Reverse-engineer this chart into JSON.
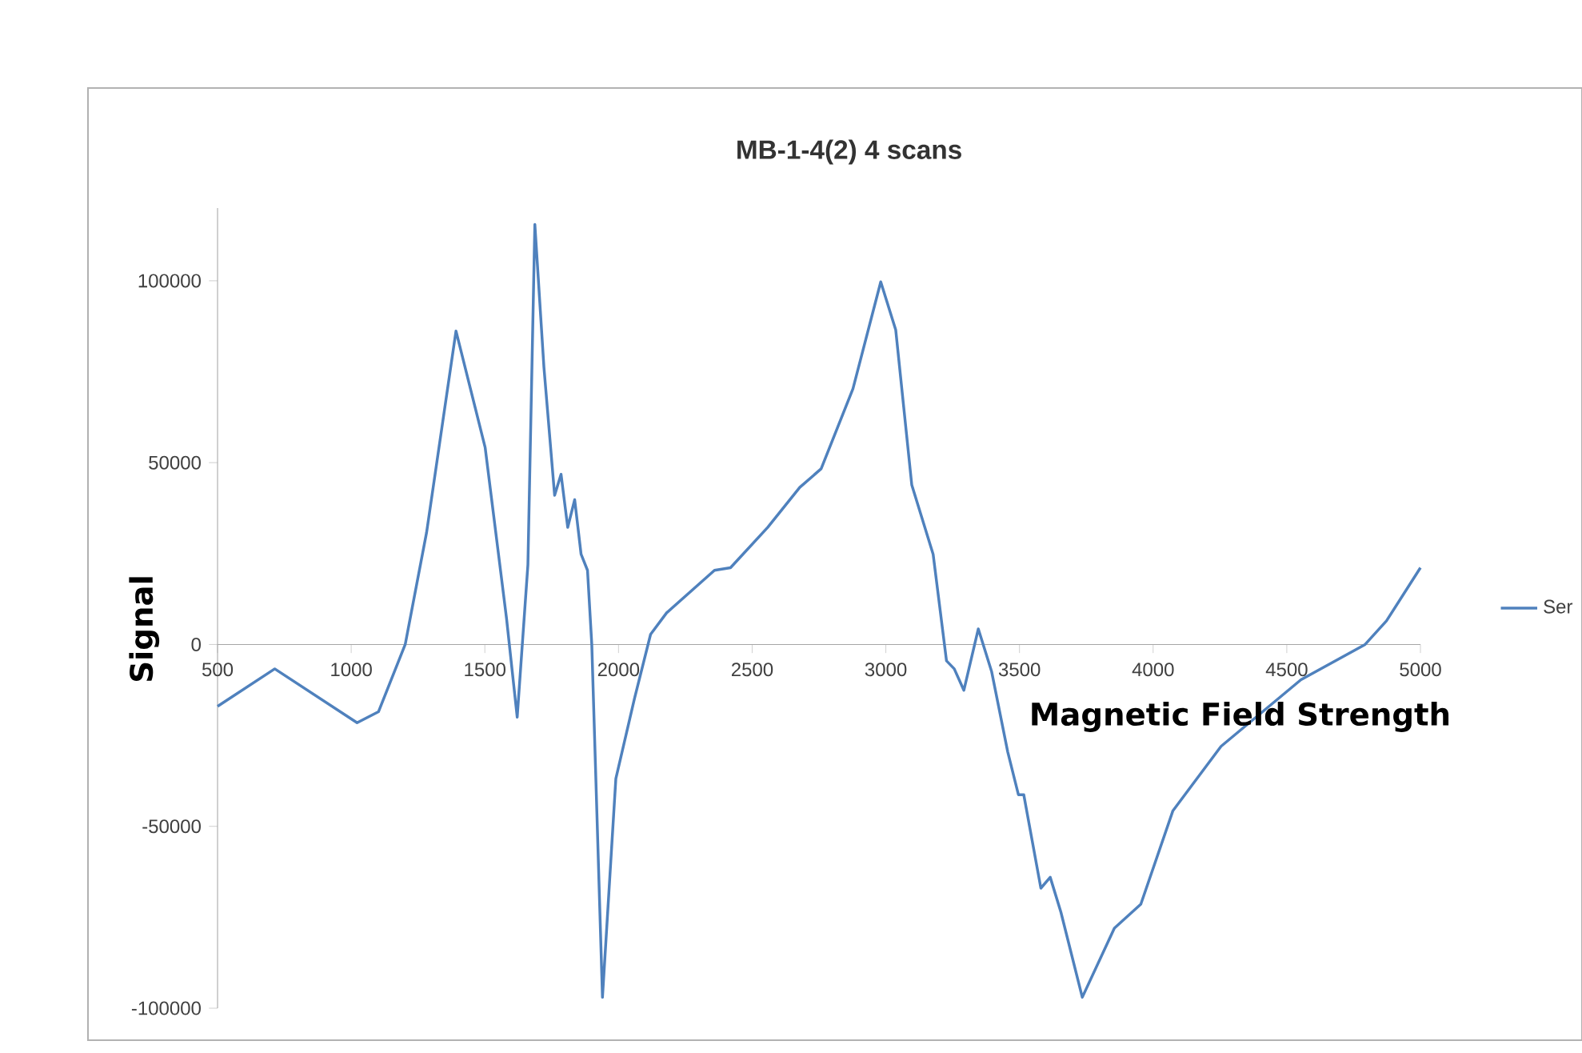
{
  "chart_data": {
    "type": "line",
    "title": "MB-1-4(2) 4 scans",
    "xlabel": "Magnetic Field Strength",
    "ylabel": "Signal",
    "xlim": [
      500,
      5000
    ],
    "xticks": [
      500,
      1000,
      1500,
      2000,
      2500,
      3000,
      3500,
      4000,
      4500,
      5000
    ],
    "ylim": [
      -100000,
      120000
    ],
    "yticks": [
      -100000,
      -50000,
      0,
      50000,
      100000
    ],
    "grid": false,
    "legend": "right",
    "marker": "none",
    "line_style": "solid",
    "series": [
      {
        "name": "Ser",
        "color": "#4f81bd",
        "x": [
          500,
          714,
          1022,
          1102,
          1202,
          1282,
          1392,
          1501,
          1581,
          1621,
          1661,
          1687,
          1721,
          1761,
          1785,
          1810,
          1836,
          1860,
          1884,
          1900,
          1940,
          1990,
          2060,
          2120,
          2180,
          2359,
          2419,
          2558,
          2678,
          2758,
          2877,
          2981,
          3037,
          3097,
          3177,
          3227,
          3256,
          3292,
          3346,
          3396,
          3456,
          3496,
          3516,
          3580,
          3615,
          3655,
          3735,
          3855,
          3954,
          4074,
          4254,
          4553,
          4793,
          4873,
          5000
        ],
        "values": [
          -17000,
          -6700,
          -21500,
          -18500,
          0,
          30800,
          86200,
          54200,
          7200,
          -20000,
          21900,
          115500,
          76200,
          41000,
          46800,
          32200,
          39800,
          24800,
          20400,
          0,
          -97000,
          -36900,
          -14800,
          2800,
          8700,
          20400,
          21100,
          32200,
          43200,
          48300,
          70300,
          99700,
          86500,
          43900,
          24800,
          -4500,
          -6700,
          -12600,
          4300,
          -7500,
          -29500,
          -41300,
          -41300,
          -67000,
          -64000,
          -73600,
          -97000,
          -78000,
          -71400,
          -45700,
          -28000,
          -9700,
          0,
          6500,
          21100
        ]
      }
    ]
  }
}
